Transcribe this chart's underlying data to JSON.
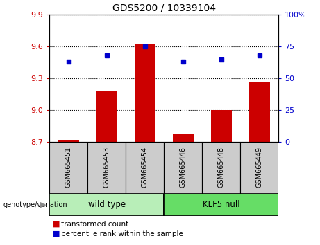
{
  "title": "GDS5200 / 10339104",
  "samples": [
    "GSM665451",
    "GSM665453",
    "GSM665454",
    "GSM665446",
    "GSM665448",
    "GSM665449"
  ],
  "transformed_counts": [
    8.72,
    9.18,
    9.62,
    8.78,
    9.0,
    9.27
  ],
  "percentile_ranks": [
    63,
    68,
    75,
    63,
    65,
    68
  ],
  "ylim_left": [
    8.7,
    9.9
  ],
  "ylim_right": [
    0,
    100
  ],
  "yticks_left": [
    8.7,
    9.0,
    9.3,
    9.6,
    9.9
  ],
  "yticks_right": [
    0,
    25,
    50,
    75,
    100
  ],
  "bar_color": "#cc0000",
  "dot_color": "#0000cc",
  "wild_type_color": "#b8eeb8",
  "klf5_null_color": "#66dd66",
  "label_box_color": "#cccccc",
  "tick_label_color_left": "#cc0000",
  "tick_label_color_right": "#0000cc",
  "legend_red_label": "transformed count",
  "legend_blue_label": "percentile rank within the sample",
  "genotype_label": "genotype/variation",
  "bar_width": 0.55,
  "n_wild": 3,
  "n_klf": 3
}
